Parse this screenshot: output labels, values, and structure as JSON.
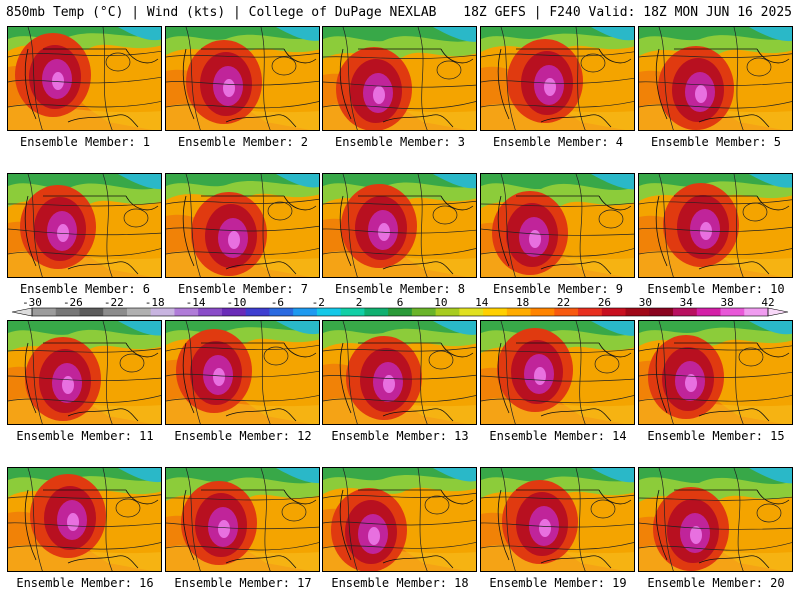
{
  "header": {
    "left": "850mb Temp (°C) | Wind (kts) | College of DuPage NEXLAB",
    "right": "18Z GEFS | F240 Valid: 18Z MON JUN 16 2025"
  },
  "members": [
    "Ensemble Member: 1",
    "Ensemble Member: 2",
    "Ensemble Member: 3",
    "Ensemble Member: 4",
    "Ensemble Member: 5",
    "Ensemble Member: 6",
    "Ensemble Member: 7",
    "Ensemble Member: 8",
    "Ensemble Member: 9",
    "Ensemble Member: 10",
    "Ensemble Member: 11",
    "Ensemble Member: 12",
    "Ensemble Member: 13",
    "Ensemble Member: 14",
    "Ensemble Member: 15",
    "Ensemble Member: 16",
    "Ensemble Member: 17",
    "Ensemble Member: 18",
    "Ensemble Member: 19",
    "Ensemble Member: 20"
  ],
  "colorbar": {
    "ticks": [
      "-30",
      "-26",
      "-22",
      "-18",
      "-14",
      "-10",
      "-6",
      "-2",
      "2",
      "6",
      "10",
      "14",
      "18",
      "22",
      "26",
      "30",
      "34",
      "38",
      "42"
    ],
    "colors": [
      "#9c9c9c",
      "#777777",
      "#5c5c5c",
      "#8c8c8c",
      "#b0b0b0",
      "#c8b4e0",
      "#b07cd8",
      "#8a4cc8",
      "#6a2cb8",
      "#3e3ed0",
      "#2a6ae0",
      "#1e9af0",
      "#14c8e8",
      "#12cfa6",
      "#10b070",
      "#2a9a38",
      "#6ab42a",
      "#a8cc20",
      "#e0e020",
      "#ffd000",
      "#ffac00",
      "#ff8400",
      "#f85a10",
      "#e83020",
      "#c81020",
      "#a00818",
      "#8a0420",
      "#b81060",
      "#d420a8",
      "#e858d8",
      "#f09cf0"
    ]
  }
}
